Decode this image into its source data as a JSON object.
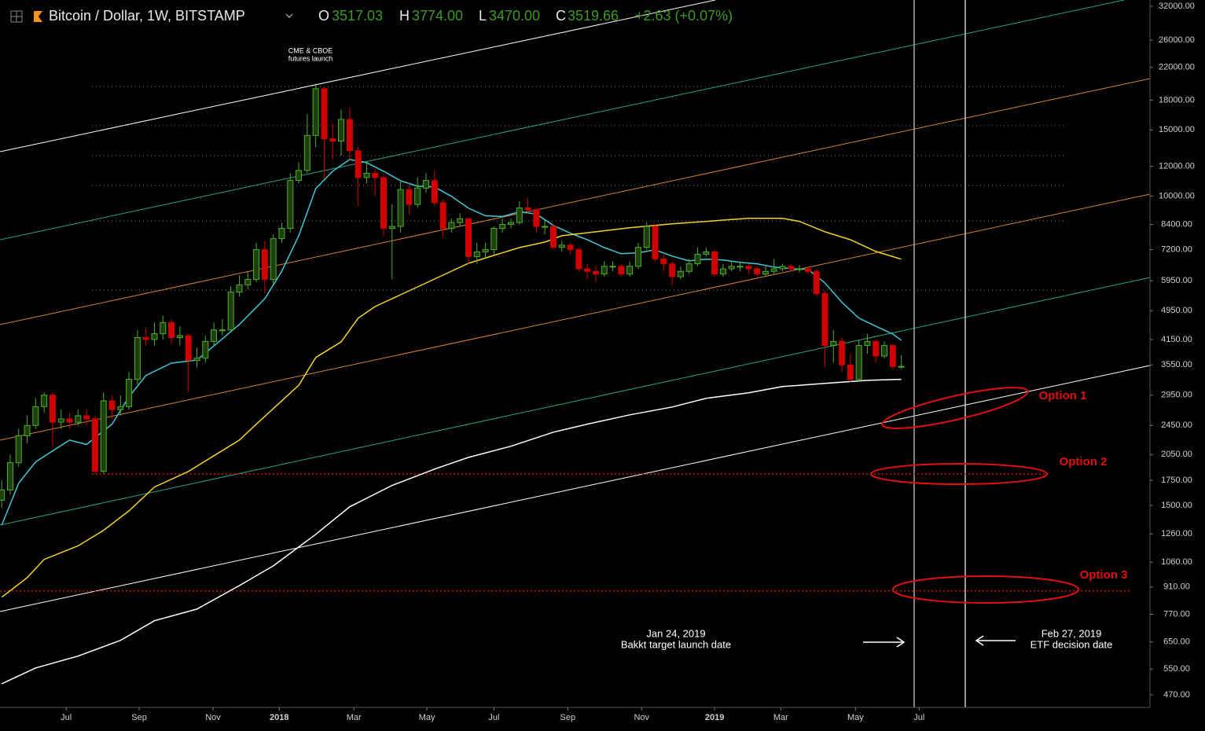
{
  "chart_data": {
    "type": "candlestick",
    "title": "Bitcoin / Dollar, 1W, BITSTAMP",
    "ohlc_header": [
      {
        "label": "O",
        "value": "3517.03"
      },
      {
        "label": "H",
        "value": "3774.00"
      },
      {
        "label": "L",
        "value": "3470.00"
      },
      {
        "label": "C",
        "value": "3519.66"
      }
    ],
    "change": "+2.63 (+0.07%)",
    "log_scale": true,
    "grid": false,
    "up_color": "#4caf27",
    "up_fill": "#1e3f10",
    "down_color": "#d00000",
    "xlim": [
      -0.2,
      135.3
    ],
    "xticks": [
      {
        "value": 7.6,
        "label": "Jul"
      },
      {
        "value": 16.2,
        "label": "Sep"
      },
      {
        "value": 24.9,
        "label": "Nov"
      },
      {
        "value": 32.7,
        "label": "2018"
      },
      {
        "value": 41.5,
        "label": "Mar"
      },
      {
        "value": 50.1,
        "label": "May"
      },
      {
        "value": 58,
        "label": "Jul"
      },
      {
        "value": 66.7,
        "label": "Sep"
      },
      {
        "value": 75.4,
        "label": "Nov"
      },
      {
        "value": 84,
        "label": "2019"
      },
      {
        "value": 91.8,
        "label": "Mar"
      },
      {
        "value": 100.6,
        "label": "May"
      },
      {
        "value": 108.1,
        "label": "Jul"
      }
    ],
    "ylim": [
      435,
      33260
    ],
    "yticks": [
      {
        "value": 32000,
        "label": "32000.00"
      },
      {
        "value": 26000,
        "label": "26000.00"
      },
      {
        "value": 22000,
        "label": "22000.00"
      },
      {
        "value": 18000,
        "label": "18000.00"
      },
      {
        "value": 15000,
        "label": "15000.00"
      },
      {
        "value": 12000,
        "label": "12000.00"
      },
      {
        "value": 10000,
        "label": "10000.00"
      },
      {
        "value": 8400,
        "label": "8400.00"
      },
      {
        "value": 7200,
        "label": "7200.00"
      },
      {
        "value": 5950,
        "label": "5950.00"
      },
      {
        "value": 4950,
        "label": "4950.00"
      },
      {
        "value": 4150,
        "label": "4150.00"
      },
      {
        "value": 3550,
        "label": "3550.00"
      },
      {
        "value": 2950,
        "label": "2950.00"
      },
      {
        "value": 2450,
        "label": "2450.00"
      },
      {
        "value": 2050,
        "label": "2050.00"
      },
      {
        "value": 1750,
        "label": "1750.00"
      },
      {
        "value": 1500,
        "label": "1500.00"
      },
      {
        "value": 1260,
        "label": "1260.00"
      },
      {
        "value": 1060,
        "label": "1060.00"
      },
      {
        "value": 910,
        "label": "910.00"
      },
      {
        "value": 770,
        "label": "770.00"
      },
      {
        "value": 650,
        "label": "650.00"
      },
      {
        "value": 550,
        "label": "550.00"
      },
      {
        "value": 470,
        "label": "470.00"
      }
    ],
    "open": [
      1550,
      1650,
      1950,
      2300,
      2450,
      2750,
      2950,
      2500,
      2550,
      2500,
      2600,
      2550,
      1850,
      2850,
      2700,
      2750,
      3250,
      4200,
      4150,
      4300,
      4600,
      4200,
      4250,
      3650,
      3700,
      4100,
      4400,
      4400,
      5550,
      5800,
      6000,
      7200,
      6000,
      7700,
      8200,
      11000,
      11700,
      14500,
      19300,
      14200,
      14000,
      16000,
      13200,
      11200,
      11500,
      11200,
      8200,
      8300,
      10400,
      9500,
      10500,
      11000,
      9600,
      8200,
      8500,
      8700,
      6900,
      7100,
      7200,
      8200,
      8400,
      8500,
      9300,
      9200,
      8300,
      8300,
      7300,
      7400,
      7200,
      6400,
      6300,
      6200,
      6500,
      6500,
      6200,
      6500,
      7300,
      8300,
      6800,
      6600,
      6100,
      6300,
      6600,
      7000,
      7100,
      6200,
      6400,
      6500,
      6500,
      6400,
      6200,
      6300,
      6400,
      6500,
      6400,
      6400,
      6300,
      5500,
      4000,
      4100,
      3550,
      3250,
      4000,
      4100,
      3750,
      4000,
      3517.03
    ],
    "high": [
      1750,
      2050,
      2400,
      2600,
      2900,
      3000,
      3000,
      2700,
      2650,
      2700,
      2700,
      2600,
      3000,
      2950,
      2950,
      3400,
      4400,
      4450,
      4600,
      4800,
      4700,
      4500,
      4300,
      3950,
      4250,
      4600,
      4700,
      5750,
      6150,
      6300,
      7500,
      7600,
      7900,
      8500,
      11500,
      12300,
      16500,
      19700,
      19600,
      15600,
      17000,
      17200,
      13500,
      12400,
      11800,
      11500,
      9500,
      11000,
      10800,
      11200,
      11500,
      11700,
      9800,
      8700,
      9000,
      8800,
      7500,
      7500,
      8300,
      8700,
      8700,
      9700,
      9900,
      9300,
      8600,
      8400,
      7600,
      7500,
      7300,
      6600,
      6500,
      6700,
      6700,
      6600,
      6700,
      7500,
      8500,
      8400,
      7000,
      6700,
      6500,
      6800,
      7300,
      7300,
      7200,
      6600,
      6700,
      6700,
      6600,
      6500,
      6500,
      6800,
      6600,
      6600,
      6550,
      6500,
      6400,
      5600,
      4400,
      4200,
      3800,
      4150,
      4300,
      4150,
      4100,
      4050,
      3774
    ],
    "low": [
      1480,
      1600,
      1900,
      2200,
      2400,
      2650,
      2150,
      2400,
      2400,
      2450,
      2450,
      1820,
      1820,
      2550,
      2600,
      2700,
      3150,
      4000,
      4000,
      4150,
      4050,
      4000,
      3000,
      3500,
      3600,
      4000,
      4250,
      4350,
      5400,
      5650,
      5900,
      5500,
      5800,
      7500,
      8000,
      10800,
      11500,
      13500,
      11100,
      12500,
      12800,
      12500,
      9400,
      10800,
      10000,
      7800,
      6000,
      8000,
      8900,
      9300,
      10200,
      9400,
      7800,
      8000,
      8300,
      6600,
      6600,
      6800,
      7000,
      8000,
      8200,
      8400,
      9000,
      8000,
      7900,
      7200,
      7100,
      7000,
      6300,
      6000,
      5900,
      6100,
      6300,
      6100,
      6100,
      6400,
      7200,
      6700,
      6300,
      5800,
      6000,
      6200,
      6500,
      6900,
      6100,
      6100,
      6300,
      6300,
      6200,
      6100,
      6100,
      6200,
      6300,
      6300,
      6250,
      6200,
      5400,
      3500,
      3600,
      3400,
      3200,
      3200,
      3800,
      3600,
      3700,
      3450,
      3470
    ],
    "close": [
      1650,
      1950,
      2300,
      2450,
      2750,
      2950,
      2500,
      2550,
      2500,
      2600,
      2550,
      1850,
      2850,
      2700,
      2750,
      3250,
      4200,
      4150,
      4300,
      4600,
      4200,
      4250,
      3650,
      3700,
      4100,
      4400,
      4400,
      5550,
      5800,
      6000,
      7200,
      6000,
      7700,
      8200,
      11000,
      11700,
      14500,
      19300,
      14200,
      14000,
      16000,
      13200,
      11200,
      11500,
      11200,
      8200,
      8300,
      10400,
      9500,
      10500,
      11000,
      9600,
      8200,
      8500,
      8700,
      6900,
      7100,
      7200,
      8200,
      8400,
      8500,
      9300,
      9200,
      8300,
      8300,
      7300,
      7400,
      7200,
      6400,
      6300,
      6200,
      6500,
      6500,
      6200,
      6500,
      7300,
      8300,
      6800,
      6600,
      6100,
      6300,
      6600,
      7000,
      7100,
      6200,
      6400,
      6500,
      6500,
      6400,
      6200,
      6300,
      6400,
      6500,
      6400,
      6400,
      6300,
      5500,
      4000,
      4100,
      3550,
      3250,
      4000,
      4100,
      3750,
      4000,
      3517.03,
      3519.66
    ],
    "moving_averages": [
      {
        "color": "#3fc7d6",
        "x": [
          0,
          2,
          4,
          8,
          10,
          13,
          15,
          17,
          20,
          23,
          25,
          28,
          31,
          33,
          35,
          37,
          39,
          41,
          43,
          45,
          47,
          49,
          51,
          53,
          55,
          57,
          59,
          61,
          63,
          65,
          67,
          69,
          71,
          73,
          75,
          77,
          79,
          81,
          83,
          85,
          87,
          89,
          91,
          93,
          95,
          97,
          99,
          101,
          103,
          105,
          106
        ],
        "values": [
          1330,
          1720,
          1960,
          2240,
          2180,
          2470,
          2920,
          3330,
          3590,
          3660,
          3990,
          4550,
          5330,
          6310,
          7840,
          10470,
          11640,
          12510,
          12270,
          11640,
          10980,
          10620,
          10570,
          9980,
          9280,
          8860,
          8820,
          9080,
          8950,
          8350,
          7960,
          7650,
          7290,
          7020,
          7060,
          7190,
          6920,
          6720,
          6790,
          6760,
          6660,
          6600,
          6470,
          6410,
          6380,
          5870,
          5210,
          4730,
          4500,
          4290,
          4130
        ]
      },
      {
        "color": "#f2d22a",
        "x": [
          0,
          3,
          5,
          9,
          12,
          15,
          18,
          22,
          25,
          28,
          30,
          33,
          35,
          37,
          40,
          42,
          44,
          47,
          50,
          53,
          55,
          58,
          61,
          64,
          66,
          70,
          74,
          79,
          83,
          85,
          88,
          92,
          94,
          97,
          100,
          103,
          106
        ],
        "values": [
          855,
          964,
          1078,
          1171,
          1288,
          1452,
          1680,
          1848,
          2035,
          2240,
          2470,
          2850,
          3137,
          3716,
          4090,
          4730,
          5080,
          5460,
          5870,
          6310,
          6620,
          6950,
          7290,
          7540,
          7840,
          8030,
          8230,
          8430,
          8560,
          8630,
          8720,
          8720,
          8560,
          8030,
          7650,
          7120,
          6790
        ]
      },
      {
        "color": "#ffffff",
        "x": [
          0,
          4,
          9,
          14,
          18,
          23,
          28,
          32,
          37,
          41,
          46,
          51,
          55,
          60,
          65,
          69,
          74,
          79,
          83,
          88,
          92,
          97,
          102,
          106
        ],
        "values": [
          503,
          554,
          596,
          656,
          740,
          795,
          918,
          1036,
          1257,
          1488,
          1696,
          1875,
          2015,
          2157,
          2351,
          2470,
          2615,
          2743,
          2893,
          2993,
          3110,
          3170,
          3230,
          3250
        ]
      }
    ],
    "levels": [
      {
        "value": 19580,
        "color": "#777777"
      },
      {
        "value": 15390,
        "color": "#777777"
      },
      {
        "value": 12810,
        "color": "#777777"
      },
      {
        "value": 10670,
        "color": "#777777"
      },
      {
        "value": 8590,
        "color": "#777777"
      },
      {
        "value": 5620,
        "color": "#777777"
      },
      {
        "value": 1820,
        "color": "#e01010"
      },
      {
        "value": 888,
        "color": "#e01010"
      }
    ],
    "annotations": [
      {
        "lines": [
          "CME & CBOE",
          "futures launch"
        ]
      },
      {
        "lines": [
          "Jan 24, 2019",
          "Bakkt target launch date"
        ]
      },
      {
        "lines": [
          "Feb 27, 2019",
          "ETF decision date"
        ]
      },
      {
        "lines": [
          "Option 1"
        ]
      },
      {
        "lines": [
          "Option 2"
        ]
      },
      {
        "lines": [
          "Option 3"
        ]
      }
    ]
  }
}
